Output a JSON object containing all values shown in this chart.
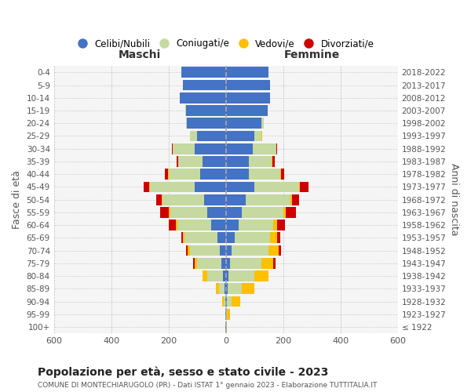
{
  "age_groups": [
    "100+",
    "95-99",
    "90-94",
    "85-89",
    "80-84",
    "75-79",
    "70-74",
    "65-69",
    "60-64",
    "55-59",
    "50-54",
    "45-49",
    "40-44",
    "35-39",
    "30-34",
    "25-29",
    "20-24",
    "15-19",
    "10-14",
    "5-9",
    "0-4"
  ],
  "birth_years": [
    "≤ 1922",
    "1923-1927",
    "1928-1932",
    "1933-1937",
    "1938-1942",
    "1943-1947",
    "1948-1952",
    "1953-1957",
    "1958-1962",
    "1963-1967",
    "1968-1972",
    "1973-1977",
    "1978-1982",
    "1983-1987",
    "1988-1992",
    "1993-1997",
    "1998-2002",
    "2003-2007",
    "2008-2012",
    "2013-2017",
    "2018-2022"
  ],
  "colors": {
    "celibi": "#4472C4",
    "coniugati": "#c5d9a0",
    "vedovi": "#ffc000",
    "divorziati": "#cc0000"
  },
  "maschi": {
    "celibi": [
      1,
      2,
      2,
      5,
      10,
      15,
      20,
      30,
      50,
      65,
      75,
      110,
      90,
      80,
      110,
      100,
      135,
      140,
      160,
      150,
      155
    ],
    "coniugati": [
      0,
      0,
      5,
      20,
      55,
      85,
      105,
      115,
      120,
      130,
      145,
      155,
      110,
      85,
      75,
      25,
      5,
      2,
      0,
      0,
      0
    ],
    "vedovi": [
      0,
      1,
      5,
      10,
      15,
      8,
      8,
      5,
      4,
      4,
      3,
      3,
      2,
      1,
      1,
      1,
      0,
      0,
      0,
      0,
      0
    ],
    "divorziati": [
      0,
      0,
      0,
      0,
      0,
      5,
      5,
      5,
      25,
      30,
      20,
      20,
      10,
      5,
      3,
      0,
      0,
      0,
      0,
      0,
      0
    ]
  },
  "femmine": {
    "celibi": [
      1,
      2,
      4,
      5,
      10,
      15,
      20,
      30,
      45,
      55,
      70,
      100,
      80,
      80,
      95,
      100,
      125,
      145,
      155,
      155,
      150
    ],
    "coniugati": [
      0,
      2,
      15,
      50,
      90,
      110,
      130,
      125,
      120,
      145,
      155,
      155,
      110,
      80,
      80,
      25,
      8,
      2,
      0,
      0,
      0
    ],
    "vedovi": [
      2,
      10,
      30,
      45,
      50,
      40,
      35,
      25,
      15,
      10,
      5,
      4,
      3,
      2,
      1,
      1,
      0,
      0,
      0,
      0,
      0
    ],
    "divorziati": [
      0,
      0,
      0,
      0,
      0,
      8,
      8,
      10,
      25,
      35,
      25,
      30,
      10,
      8,
      3,
      0,
      0,
      0,
      0,
      0,
      0
    ]
  },
  "title": "Popolazione per età, sesso e stato civile - 2023",
  "subtitle": "COMUNE DI MONTECHIARUGOLO (PR) - Dati ISTAT 1° gennaio 2023 - Elaborazione TUTTITALIA.IT",
  "xlabel_left": "Maschi",
  "xlabel_right": "Femmine",
  "ylabel_left": "Fasce di età",
  "ylabel_right": "Anni di nascita",
  "xlim": 600,
  "legend_labels": [
    "Celibi/Nubili",
    "Coniugati/e",
    "Vedovi/e",
    "Divorziati/e"
  ],
  "background_color": "#ffffff",
  "grid_color": "#aaaaaa"
}
